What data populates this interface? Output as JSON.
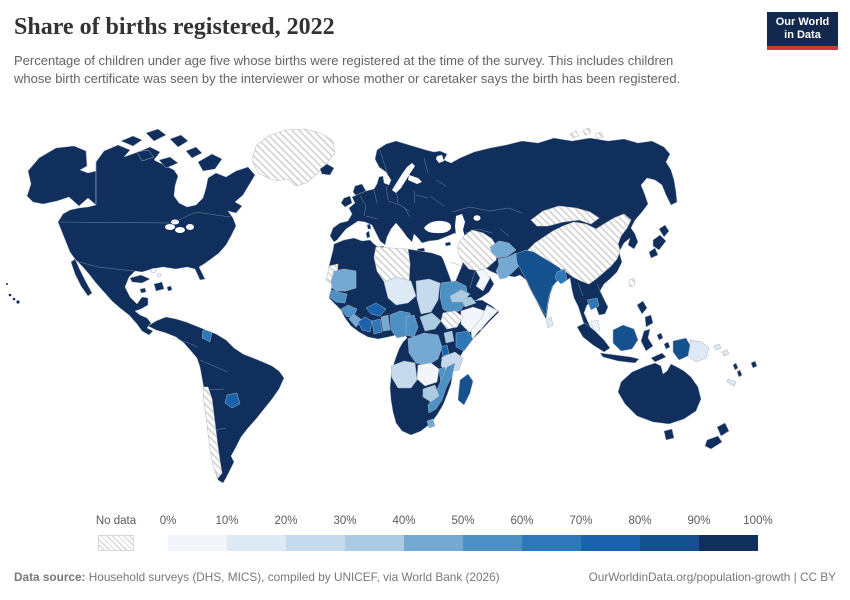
{
  "header": {
    "title": "Share of births registered, 2022",
    "subtitle": "Percentage of children under age five whose births were registered at the time of the survey. This includes children whose birth certificate was seen by the interviewer or whose mother or caretaker says the birth has been registered."
  },
  "logo": {
    "line1": "Our World",
    "line2": "in Data",
    "background": "#12294d",
    "accent": "#d0393e"
  },
  "footer": {
    "source_label": "Data source:",
    "source_text": " Household surveys (DHS, MICS), compiled by UNICEF, via World Bank (2026)",
    "right_text": "OurWorldinData.org/population-growth | CC BY"
  },
  "chart_data": {
    "type": "choropleth_map",
    "title": "Share of births registered, 2022",
    "unit": "% of children under five with registered births",
    "legend": {
      "no_data_label": "No data",
      "tick_labels": [
        "0%",
        "10%",
        "20%",
        "30%",
        "40%",
        "50%",
        "60%",
        "70%",
        "80%",
        "90%",
        "100%"
      ],
      "colors": [
        "#f2f6fb",
        "#dde9f4",
        "#c7daed",
        "#abcbe3",
        "#73a9d2",
        "#4d90c4",
        "#2e77b8",
        "#1a62ac",
        "#15508f",
        "#112f5c"
      ],
      "no_data_style": "diagonal gray hatching"
    },
    "regions": [
      {
        "id": "alaska",
        "name": "United States (Alaska)",
        "value": "90-100%",
        "color": "#112f5c"
      },
      {
        "id": "hawaii",
        "name": "United States (Hawaii)",
        "value": "90-100%",
        "color": "#112f5c"
      },
      {
        "id": "north-america",
        "name": "Canada, United States, Mexico, Central America",
        "value": "90-100%",
        "color": "#112f5c"
      },
      {
        "id": "arctic-islands",
        "name": "Canada (Arctic islands)",
        "value": "90-100%",
        "color": "#112f5c"
      },
      {
        "id": "baja",
        "name": "Mexico (Baja California)",
        "value": "90-100%",
        "color": "#112f5c"
      },
      {
        "id": "greenland",
        "name": "Greenland",
        "value": "No data",
        "color": "hatch"
      },
      {
        "id": "svalbard",
        "name": "Svalbard",
        "value": "No data",
        "color": "hatch"
      },
      {
        "id": "iceland",
        "name": "Iceland",
        "value": "90-100%",
        "color": "#112f5c"
      },
      {
        "id": "uk",
        "name": "United Kingdom",
        "value": "90-100%",
        "color": "#112f5c"
      },
      {
        "id": "ireland",
        "name": "Ireland",
        "value": "90-100%",
        "color": "#112f5c"
      },
      {
        "id": "cuba",
        "name": "Cuba",
        "value": "90-100%",
        "color": "#112f5c"
      },
      {
        "id": "hispaniola",
        "name": "Haiti / Dominican Republic",
        "value": "90-100%",
        "color": "#112f5c"
      },
      {
        "id": "jamaica",
        "name": "Jamaica",
        "value": "90-100%",
        "color": "#112f5c"
      },
      {
        "id": "puerto-rico",
        "name": "Puerto Rico",
        "value": "90-100%",
        "color": "#112f5c"
      },
      {
        "id": "bahamas",
        "name": "Bahamas",
        "value": "0-10%",
        "color": "#f2f6fb"
      },
      {
        "id": "south-america",
        "name": "Brazil, Argentina, Colombia, Peru, Venezuela, Bolivia, Ecuador, Uruguay",
        "value": "90-100%",
        "color": "#112f5c"
      },
      {
        "id": "guyana",
        "name": "Guyana",
        "value": "60-70%",
        "color": "#2e77b8"
      },
      {
        "id": "paraguay",
        "name": "Paraguay",
        "value": "70-80%",
        "color": "#1a62ac"
      },
      {
        "id": "chile",
        "name": "Chile",
        "value": "No data",
        "color": "hatch"
      },
      {
        "id": "eurasia",
        "name": "Europe, Russia, Turkey, Kazakhstan, Saudi Arabia, Iraq, SE Asia mainland",
        "value": "90-100%",
        "color": "#112f5c"
      },
      {
        "id": "mediterranean-islands",
        "name": "Sicily / Sardinia / Crete / Cyprus",
        "value": "90-100%",
        "color": "#112f5c"
      },
      {
        "id": "china",
        "name": "China",
        "value": "No data",
        "color": "hatch"
      },
      {
        "id": "mongolia",
        "name": "Mongolia",
        "value": "No data",
        "color": "hatch"
      },
      {
        "id": "iran-turkmenistan",
        "name": "Iran / Turkmenistan",
        "value": "No data",
        "color": "hatch"
      },
      {
        "id": "taiwan",
        "name": "Taiwan",
        "value": "No data",
        "color": "hatch"
      },
      {
        "id": "afghanistan",
        "name": "Afghanistan",
        "value": "40-50%",
        "color": "#73a9d2"
      },
      {
        "id": "pakistan",
        "name": "Pakistan",
        "value": "40-50%",
        "color": "#73a9d2"
      },
      {
        "id": "india",
        "name": "India",
        "value": "80-90%",
        "color": "#15508f"
      },
      {
        "id": "bangladesh",
        "name": "Bangladesh",
        "value": "60-70%",
        "color": "#2e77b8"
      },
      {
        "id": "sri-lanka",
        "name": "Sri Lanka",
        "value": "10-20%",
        "color": "#dde9f4"
      },
      {
        "id": "cambodia",
        "name": "Cambodia",
        "value": "60-70%",
        "color": "#2e77b8"
      },
      {
        "id": "japan",
        "name": "Japan",
        "value": "90-100%",
        "color": "#112f5c"
      },
      {
        "id": "philippines",
        "name": "Philippines",
        "value": "90-100%",
        "color": "#112f5c"
      },
      {
        "id": "malaysia-tip",
        "name": "Malaysia (peninsula)",
        "value": "0-10%",
        "color": "#f2f6fb"
      },
      {
        "id": "sumatra",
        "name": "Indonesia (Sumatra)",
        "value": "90-100%",
        "color": "#112f5c"
      },
      {
        "id": "java",
        "name": "Indonesia (Java)",
        "value": "90-100%",
        "color": "#112f5c"
      },
      {
        "id": "borneo",
        "name": "Malaysia / Indonesia (Borneo)",
        "value": "80-90%",
        "color": "#15508f"
      },
      {
        "id": "sulawesi",
        "name": "Indonesia (Sulawesi)",
        "value": "90-100%",
        "color": "#112f5c"
      },
      {
        "id": "moluccas",
        "name": "Indonesia (Moluccas)",
        "value": "90-100%",
        "color": "#112f5c"
      },
      {
        "id": "timor",
        "name": "Timor",
        "value": "90-100%",
        "color": "#112f5c"
      },
      {
        "id": "west-new-guinea",
        "name": "Indonesia (Papua)",
        "value": "80-90%",
        "color": "#15508f"
      },
      {
        "id": "papua-new-guinea",
        "name": "Papua New Guinea",
        "value": "10-20%",
        "color": "#dde9f4"
      },
      {
        "id": "solomon",
        "name": "Solomon Islands",
        "value": "10-20%",
        "color": "#dde9f4"
      },
      {
        "id": "vanuatu",
        "name": "Vanuatu",
        "value": "90-100%",
        "color": "#112f5c"
      },
      {
        "id": "fiji",
        "name": "Fiji",
        "value": "90-100%",
        "color": "#112f5c"
      },
      {
        "id": "new-caledonia",
        "name": "New Caledonia",
        "value": "10-20%",
        "color": "#dde9f4"
      },
      {
        "id": "australia",
        "name": "Australia",
        "value": "90-100%",
        "color": "#112f5c"
      },
      {
        "id": "tasmania",
        "name": "Australia (Tasmania)",
        "value": "90-100%",
        "color": "#112f5c"
      },
      {
        "id": "new-zealand",
        "name": "New Zealand",
        "value": "90-100%",
        "color": "#112f5c"
      },
      {
        "id": "africa-navy",
        "name": "Morocco, Algeria, Tunisia, Egypt, Mali, Gabon, Namibia, Botswana, South Africa",
        "value": "90-100%",
        "color": "#112f5c"
      },
      {
        "id": "western-sahara",
        "name": "Western Sahara",
        "value": "No data",
        "color": "hatch"
      },
      {
        "id": "libya",
        "name": "Libya",
        "value": "No data",
        "color": "hatch"
      },
      {
        "id": "south-sudan",
        "name": "South Sudan",
        "value": "No data",
        "color": "hatch"
      },
      {
        "id": "mauritania",
        "name": "Mauritania",
        "value": "40-50%",
        "color": "#73a9d2"
      },
      {
        "id": "senegal-gambia",
        "name": "Senegal / Gambia",
        "value": "50-60%",
        "color": "#4d90c4"
      },
      {
        "id": "guinea",
        "name": "Guinea",
        "value": "50-60%",
        "color": "#4d90c4"
      },
      {
        "id": "sierra-leone-liberia",
        "name": "Sierra Leone / Liberia",
        "value": "40-50%",
        "color": "#73a9d2"
      },
      {
        "id": "ivory-coast",
        "name": "Côte d'Ivoire",
        "value": "70-80%",
        "color": "#1a62ac"
      },
      {
        "id": "ghana",
        "name": "Ghana",
        "value": "60-70%",
        "color": "#2e77b8"
      },
      {
        "id": "togo-benin",
        "name": "Togo / Benin",
        "value": "40-50%",
        "color": "#73a9d2"
      },
      {
        "id": "burkina-faso",
        "name": "Burkina Faso",
        "value": "70-80%",
        "color": "#1a62ac"
      },
      {
        "id": "niger",
        "name": "Niger",
        "value": "10-20%",
        "color": "#dde9f4"
      },
      {
        "id": "nigeria",
        "name": "Nigeria",
        "value": "50-60%",
        "color": "#4d90c4"
      },
      {
        "id": "chad",
        "name": "Chad",
        "value": "20-30%",
        "color": "#c7daed"
      },
      {
        "id": "sudan",
        "name": "Sudan",
        "value": "50-60%",
        "color": "#4d90c4"
      },
      {
        "id": "eritrea-djibouti",
        "name": "Eritrea / Djibouti",
        "value": "30-40%",
        "color": "#abcbe3"
      },
      {
        "id": "ethiopia",
        "name": "Ethiopia",
        "value": "0-10%",
        "color": "#f2f6fb"
      },
      {
        "id": "somalia",
        "name": "Somalia",
        "value": "0-10%",
        "color": "#f2f6fb"
      },
      {
        "id": "central-african-republic",
        "name": "Central African Republic",
        "value": "30-40%",
        "color": "#abcbe3"
      },
      {
        "id": "cameroon",
        "name": "Cameroon",
        "value": "50-60%",
        "color": "#4d90c4"
      },
      {
        "id": "drc",
        "name": "Democratic Republic of Congo",
        "value": "40-50%",
        "color": "#73a9d2"
      },
      {
        "id": "uganda",
        "name": "Uganda",
        "value": "30-40%",
        "color": "#abcbe3"
      },
      {
        "id": "kenya",
        "name": "Kenya",
        "value": "60-70%",
        "color": "#2e77b8"
      },
      {
        "id": "rwanda-burundi",
        "name": "Rwanda / Burundi",
        "value": "70-80%",
        "color": "#1a62ac"
      },
      {
        "id": "tanzania",
        "name": "Tanzania",
        "value": "20-30%",
        "color": "#c7daed"
      },
      {
        "id": "angola",
        "name": "Angola",
        "value": "20-30%",
        "color": "#c7daed"
      },
      {
        "id": "zambia",
        "name": "Zambia",
        "value": "0-10%",
        "color": "#f2f6fb"
      },
      {
        "id": "malawi",
        "name": "Malawi",
        "value": "50-60%",
        "color": "#4d90c4"
      },
      {
        "id": "mozambique",
        "name": "Mozambique",
        "value": "50-60%",
        "color": "#4d90c4"
      },
      {
        "id": "zimbabwe",
        "name": "Zimbabwe",
        "value": "30-40%",
        "color": "#abcbe3"
      },
      {
        "id": "lesotho",
        "name": "Lesotho / Eswatini",
        "value": "40-50%",
        "color": "#73a9d2"
      },
      {
        "id": "madagascar",
        "name": "Madagascar",
        "value": "80-90%",
        "color": "#15508f"
      },
      {
        "id": "yemen",
        "name": "Yemen",
        "value": "30-40%",
        "color": "#abcbe3"
      },
      {
        "id": "oman",
        "name": "Oman",
        "value": "0-10%",
        "color": "#f2f6fb"
      }
    ]
  }
}
